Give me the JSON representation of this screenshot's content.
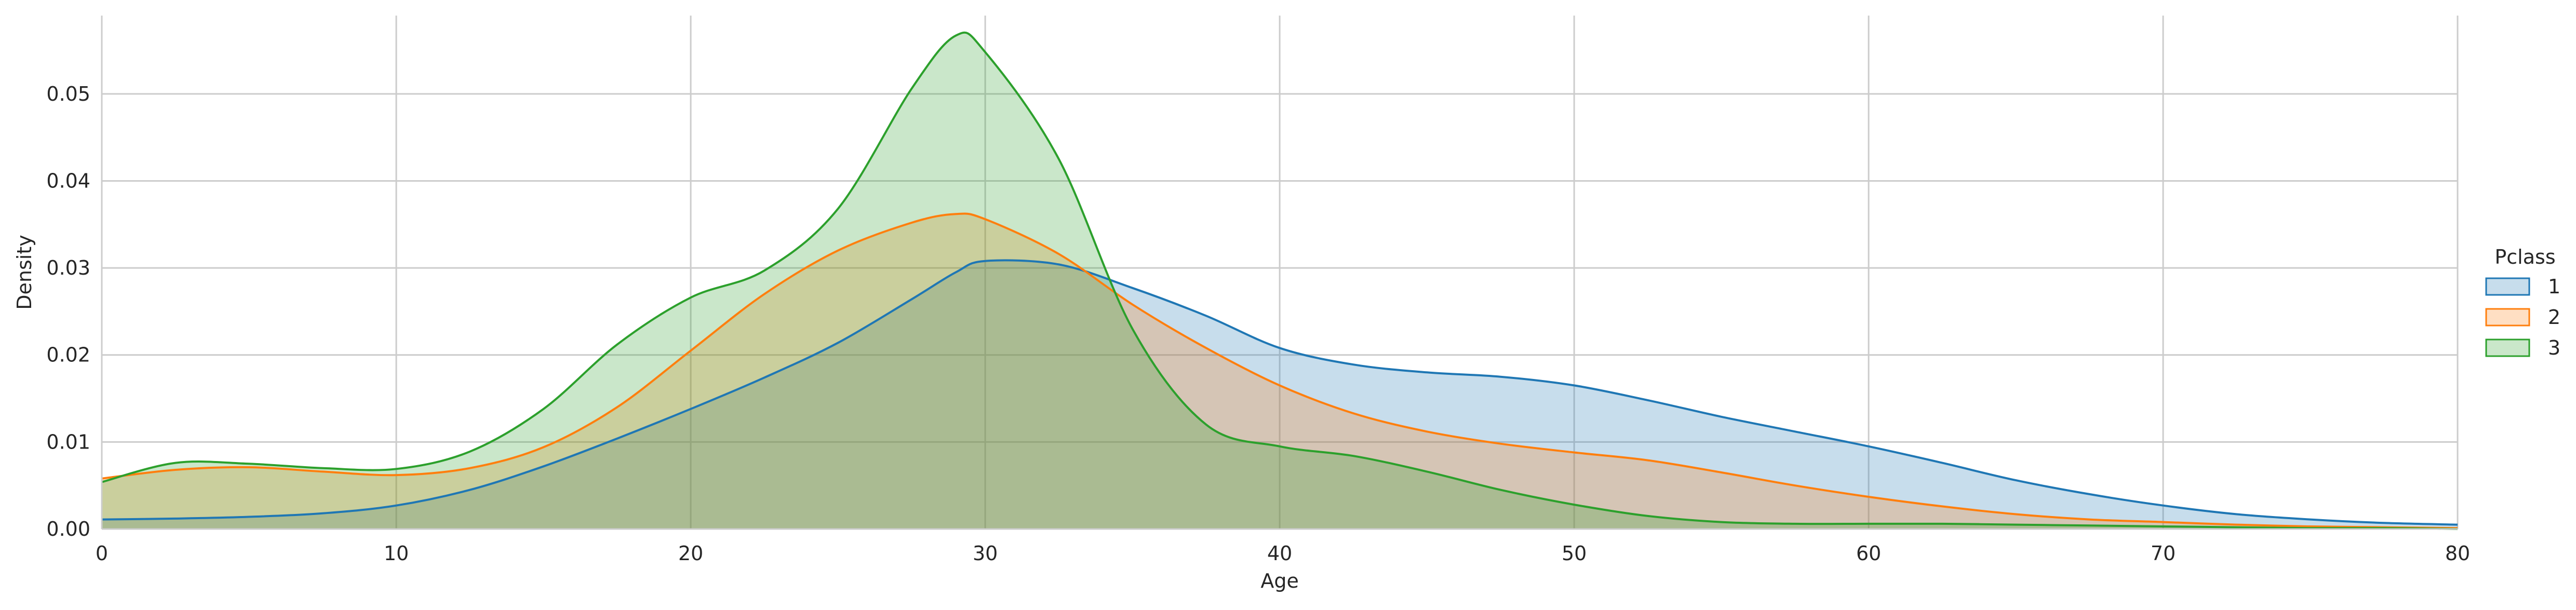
{
  "chart_data": {
    "type": "area",
    "title": "",
    "xlabel": "Age",
    "ylabel": "Density",
    "xlim": [
      0,
      80
    ],
    "ylim": [
      0,
      0.059
    ],
    "grid": true,
    "xticks": [
      0,
      10,
      20,
      30,
      40,
      50,
      60,
      70,
      80
    ],
    "yticks": [
      0.0,
      0.01,
      0.02,
      0.03,
      0.04,
      0.05
    ],
    "ytick_labels": [
      "0.00",
      "0.01",
      "0.02",
      "0.03",
      "0.04",
      "0.05"
    ],
    "legend": {
      "title": "Pclass",
      "placement": "right"
    },
    "x": [
      0,
      2.5,
      5,
      7.5,
      10,
      12.5,
      15,
      17.5,
      20,
      22.5,
      25,
      27.5,
      29,
      30,
      32.5,
      35,
      37.5,
      40,
      42.5,
      45,
      47.5,
      50,
      52.5,
      55,
      57.5,
      60,
      62.5,
      65,
      67.5,
      70,
      72.5,
      75,
      77.5,
      80
    ],
    "series": [
      {
        "name": "1",
        "color": "#1f77b4",
        "values": [
          0.0011,
          0.0012,
          0.0014,
          0.0018,
          0.0027,
          0.0045,
          0.0072,
          0.0104,
          0.0138,
          0.0174,
          0.0214,
          0.0264,
          0.0295,
          0.0308,
          0.0304,
          0.0277,
          0.0245,
          0.0208,
          0.0189,
          0.018,
          0.0175,
          0.0165,
          0.0148,
          0.0129,
          0.0112,
          0.0095,
          0.0076,
          0.0056,
          0.004,
          0.0027,
          0.0017,
          0.0011,
          0.0007,
          0.0005
        ]
      },
      {
        "name": "2",
        "color": "#ff7f0e",
        "values": [
          0.0058,
          0.0068,
          0.0071,
          0.0066,
          0.0062,
          0.007,
          0.0094,
          0.014,
          0.0205,
          0.027,
          0.032,
          0.0352,
          0.0362,
          0.0356,
          0.0316,
          0.0258,
          0.0208,
          0.0165,
          0.0133,
          0.0112,
          0.0098,
          0.0088,
          0.0079,
          0.0065,
          0.005,
          0.0037,
          0.0026,
          0.0017,
          0.0011,
          0.0008,
          0.0005,
          0.0003,
          0.0002,
          0.0001
        ]
      },
      {
        "name": "3",
        "color": "#2ca02c",
        "values": [
          0.0054,
          0.0076,
          0.0075,
          0.007,
          0.0069,
          0.0089,
          0.0138,
          0.0212,
          0.0266,
          0.0297,
          0.0368,
          0.0506,
          0.0567,
          0.0548,
          0.0425,
          0.023,
          0.012,
          0.0095,
          0.0084,
          0.0066,
          0.0045,
          0.0028,
          0.0015,
          0.0008,
          0.0006,
          0.0006,
          0.0006,
          0.0005,
          0.0004,
          0.0003,
          0.0002,
          0.0001,
          0.0001,
          0.0
        ]
      }
    ]
  }
}
